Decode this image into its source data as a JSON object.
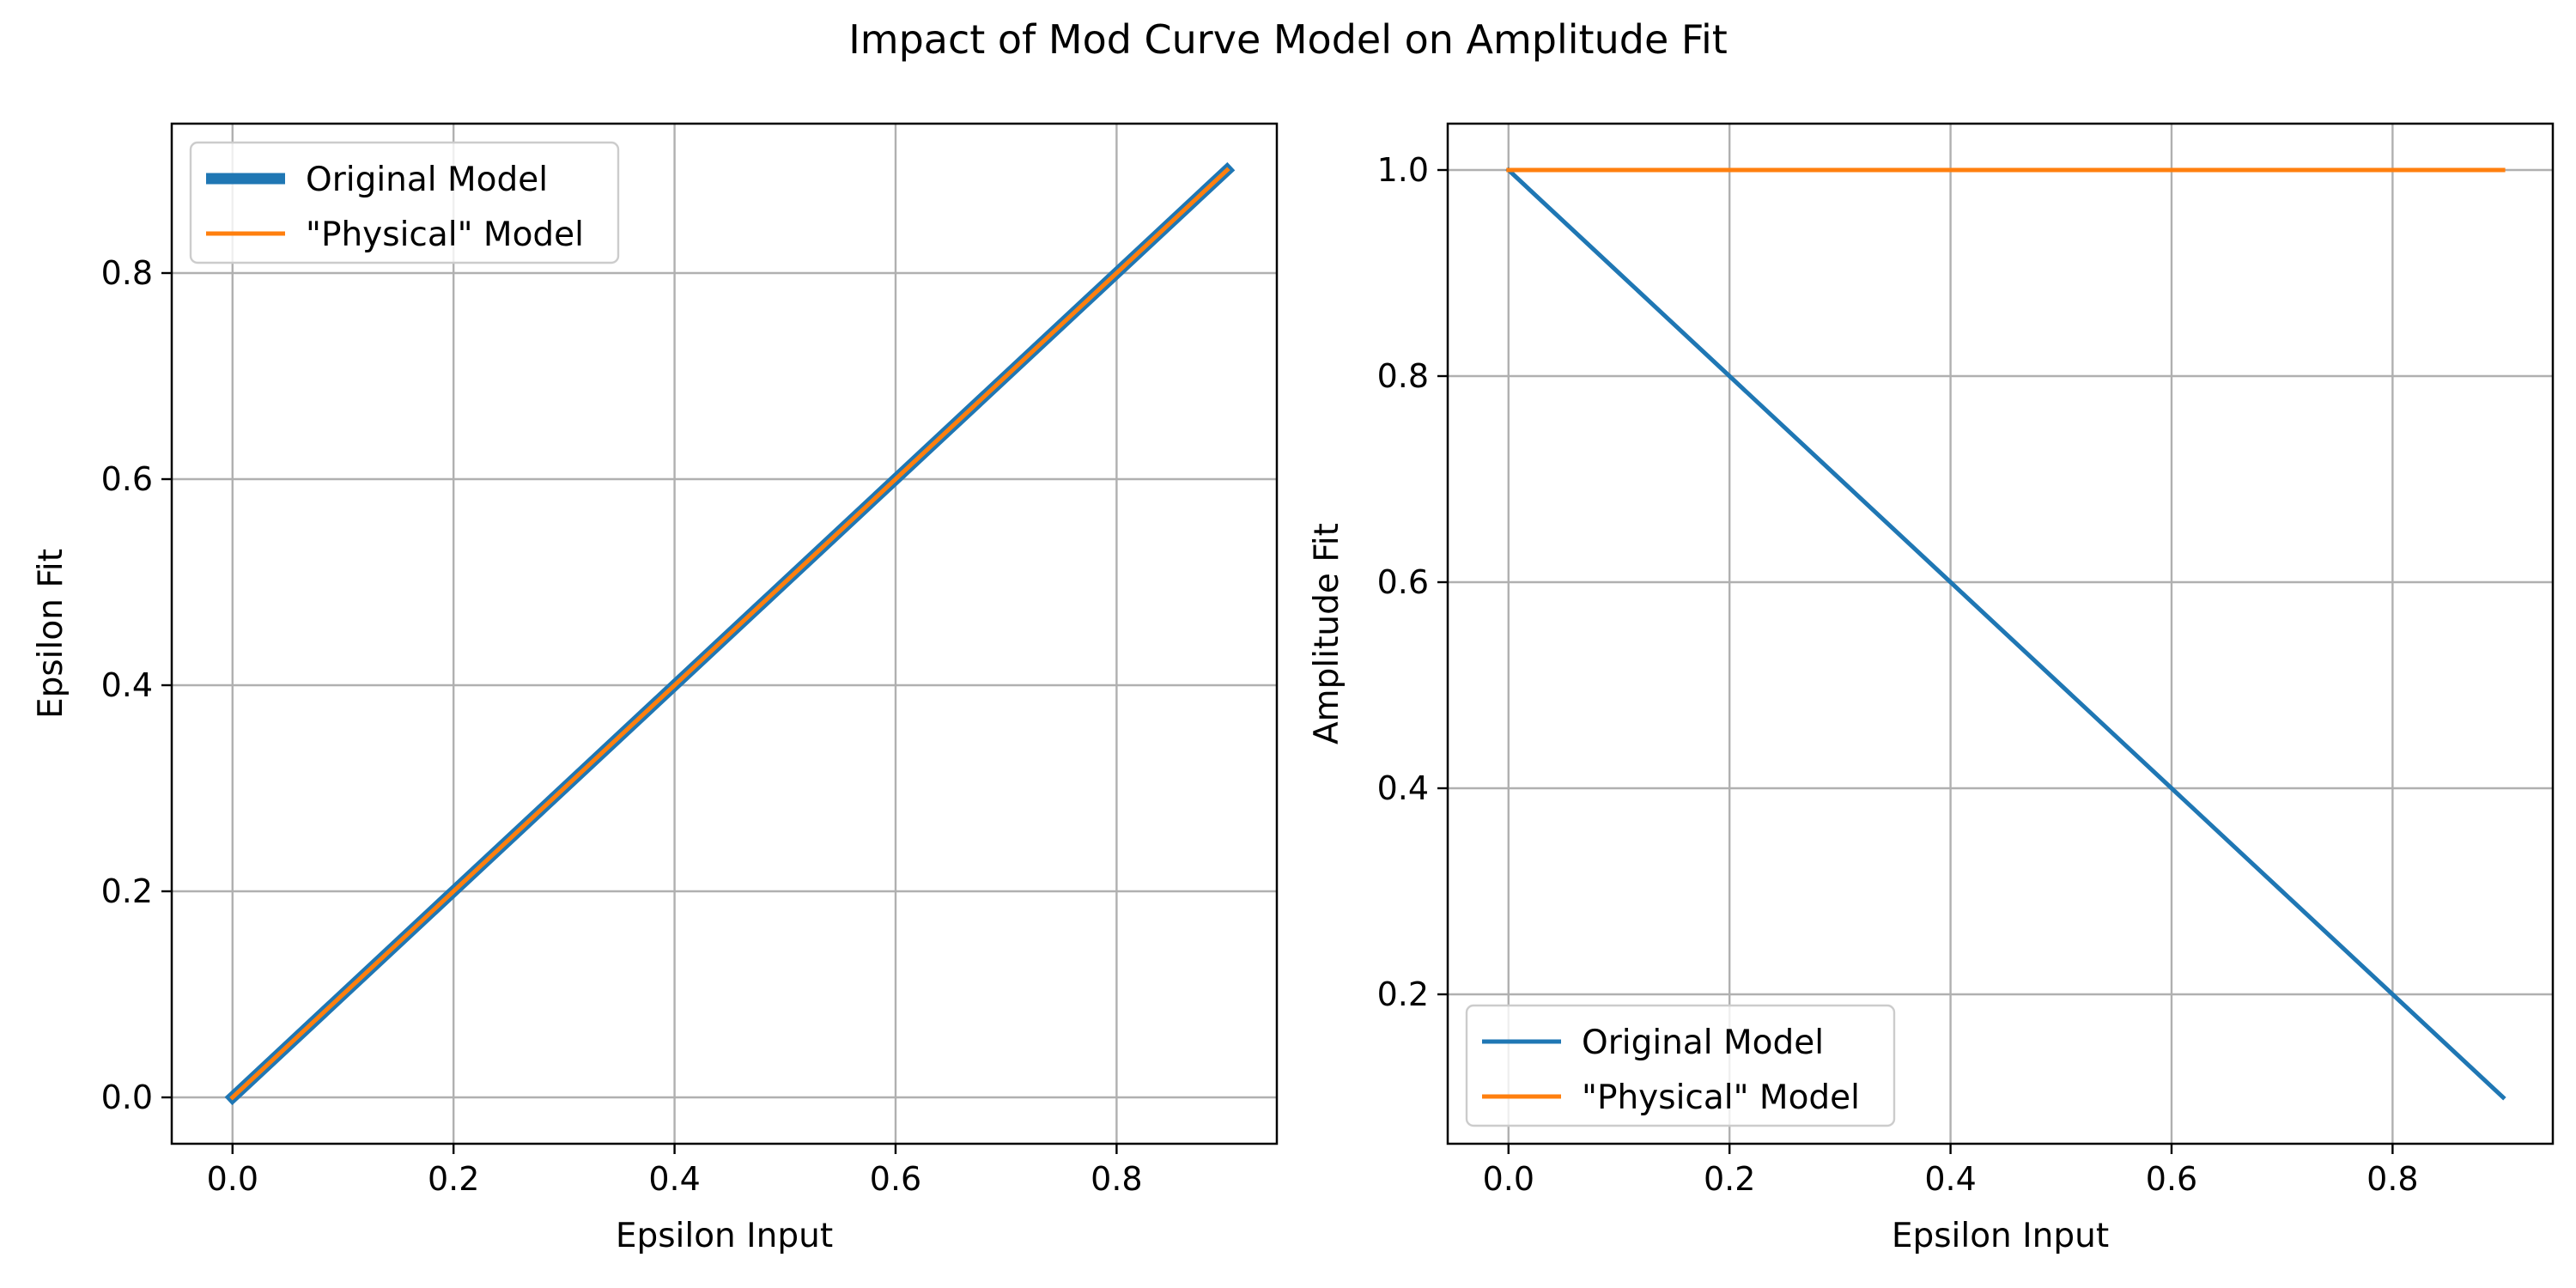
{
  "figure": {
    "title": "Impact of Mod Curve Model on Amplitude Fit"
  },
  "chart_data": [
    {
      "type": "line",
      "xlabel": "Epsilon Input",
      "ylabel": "Epsilon Fit",
      "xlim": [
        -0.055,
        0.945
      ],
      "ylim": [
        -0.045,
        0.945
      ],
      "xticks": [
        0.0,
        0.2,
        0.4,
        0.6,
        0.8
      ],
      "yticks": [
        0.0,
        0.2,
        0.4,
        0.6,
        0.8
      ],
      "tick_labels_x": [
        "0.0",
        "0.2",
        "0.4",
        "0.6",
        "0.8"
      ],
      "tick_labels_y": [
        "0.0",
        "0.2",
        "0.4",
        "0.6",
        "0.8"
      ],
      "grid": true,
      "legend_position": "upper-left",
      "series": [
        {
          "name": "Original Model",
          "color": "#1f77b4",
          "weight": "thick",
          "x": [
            0.0,
            0.1,
            0.2,
            0.3,
            0.4,
            0.5,
            0.6,
            0.7,
            0.8,
            0.9
          ],
          "y": [
            0.0,
            0.1,
            0.2,
            0.3,
            0.4,
            0.5,
            0.6,
            0.7,
            0.8,
            0.9
          ]
        },
        {
          "name": "\"Physical\" Model",
          "color": "#ff7f0e",
          "weight": "normal",
          "x": [
            0.0,
            0.1,
            0.2,
            0.3,
            0.4,
            0.5,
            0.6,
            0.7,
            0.8,
            0.9
          ],
          "y": [
            0.0,
            0.1,
            0.2,
            0.3,
            0.4,
            0.5,
            0.6,
            0.7,
            0.8,
            0.9
          ]
        }
      ]
    },
    {
      "type": "line",
      "xlabel": "Epsilon Input",
      "ylabel": "Amplitude Fit",
      "xlim": [
        -0.055,
        0.945
      ],
      "ylim": [
        0.055,
        1.045
      ],
      "xticks": [
        0.0,
        0.2,
        0.4,
        0.6,
        0.8
      ],
      "yticks": [
        0.2,
        0.4,
        0.6,
        0.8,
        1.0
      ],
      "tick_labels_x": [
        "0.0",
        "0.2",
        "0.4",
        "0.6",
        "0.8"
      ],
      "tick_labels_y": [
        "0.2",
        "0.4",
        "0.6",
        "0.8",
        "1.0"
      ],
      "grid": true,
      "legend_position": "lower-left",
      "series": [
        {
          "name": "Original Model",
          "color": "#1f77b4",
          "weight": "normal",
          "x": [
            0.0,
            0.1,
            0.2,
            0.3,
            0.4,
            0.5,
            0.6,
            0.7,
            0.8,
            0.9
          ],
          "y": [
            1.0,
            0.9,
            0.8,
            0.7,
            0.6,
            0.5,
            0.4,
            0.3,
            0.2,
            0.1
          ]
        },
        {
          "name": "\"Physical\" Model",
          "color": "#ff7f0e",
          "weight": "normal",
          "x": [
            0.0,
            0.1,
            0.2,
            0.3,
            0.4,
            0.5,
            0.6,
            0.7,
            0.8,
            0.9
          ],
          "y": [
            1.0,
            1.0,
            1.0,
            1.0,
            1.0,
            1.0,
            1.0,
            1.0,
            1.0,
            1.0
          ]
        }
      ]
    }
  ]
}
